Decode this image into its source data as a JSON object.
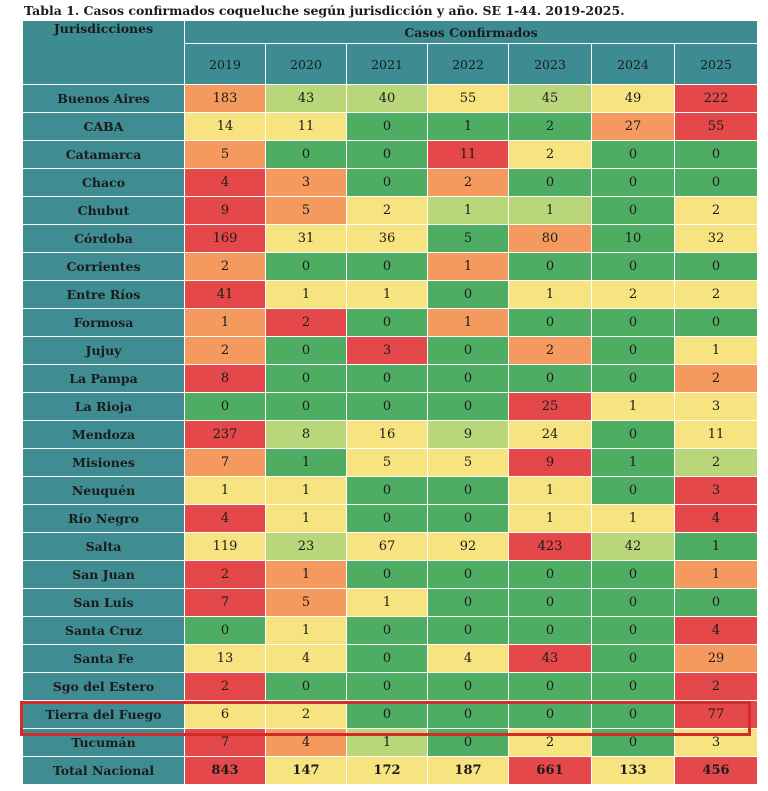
{
  "caption": "Tabla 1. Casos confirmados coqueluche según jurisdicción y año. SE 1-44. 2019-2025.",
  "header": {
    "jurisdictions": "Jurisdicciones",
    "group": "Casos Confirmados",
    "years": [
      "2019",
      "2020",
      "2021",
      "2022",
      "2023",
      "2024",
      "2025"
    ]
  },
  "colors": {
    "header_teal": "#3d8c91",
    "red": "#e5484a",
    "orange": "#f49a5e",
    "yellow": "#f7e37f",
    "light_green": "#b9d77a",
    "green": "#4fad63",
    "highlight_border": "#d42a2a"
  },
  "highlighted_row": "Tierra del Fuego",
  "rows": [
    {
      "name": "Buenos Aires",
      "values": [
        "183",
        "43",
        "40",
        "55",
        "45",
        "49",
        "222"
      ],
      "tones": [
        "orange",
        "light_green",
        "light_green",
        "yellow",
        "light_green",
        "yellow",
        "red"
      ]
    },
    {
      "name": "CABA",
      "values": [
        "14",
        "11",
        "0",
        "1",
        "2",
        "27",
        "55"
      ],
      "tones": [
        "yellow",
        "yellow",
        "green",
        "green",
        "green",
        "orange",
        "red"
      ]
    },
    {
      "name": "Catamarca",
      "values": [
        "5",
        "0",
        "0",
        "11",
        "2",
        "0",
        "0"
      ],
      "tones": [
        "orange",
        "green",
        "green",
        "red",
        "yellow",
        "green",
        "green"
      ]
    },
    {
      "name": "Chaco",
      "values": [
        "4",
        "3",
        "0",
        "2",
        "0",
        "0",
        "0"
      ],
      "tones": [
        "red",
        "orange",
        "green",
        "orange",
        "green",
        "green",
        "green"
      ]
    },
    {
      "name": "Chubut",
      "values": [
        "9",
        "5",
        "2",
        "1",
        "1",
        "0",
        "2"
      ],
      "tones": [
        "red",
        "orange",
        "yellow",
        "light_green",
        "light_green",
        "green",
        "yellow"
      ]
    },
    {
      "name": "Córdoba",
      "values": [
        "169",
        "31",
        "36",
        "5",
        "80",
        "10",
        "32"
      ],
      "tones": [
        "red",
        "yellow",
        "yellow",
        "green",
        "orange",
        "green",
        "yellow"
      ]
    },
    {
      "name": "Corrientes",
      "values": [
        "2",
        "0",
        "0",
        "1",
        "0",
        "0",
        "0"
      ],
      "tones": [
        "orange",
        "green",
        "green",
        "orange",
        "green",
        "green",
        "green"
      ]
    },
    {
      "name": "Entre Ríos",
      "values": [
        "41",
        "1",
        "1",
        "0",
        "1",
        "2",
        "2"
      ],
      "tones": [
        "red",
        "yellow",
        "yellow",
        "green",
        "yellow",
        "yellow",
        "yellow"
      ]
    },
    {
      "name": "Formosa",
      "values": [
        "1",
        "2",
        "0",
        "1",
        "0",
        "0",
        "0"
      ],
      "tones": [
        "orange",
        "red",
        "green",
        "orange",
        "green",
        "green",
        "green"
      ]
    },
    {
      "name": "Jujuy",
      "values": [
        "2",
        "0",
        "3",
        "0",
        "2",
        "0",
        "1"
      ],
      "tones": [
        "orange",
        "green",
        "red",
        "green",
        "orange",
        "green",
        "yellow"
      ]
    },
    {
      "name": "La Pampa",
      "values": [
        "8",
        "0",
        "0",
        "0",
        "0",
        "0",
        "2"
      ],
      "tones": [
        "red",
        "green",
        "green",
        "green",
        "green",
        "green",
        "orange"
      ]
    },
    {
      "name": "La Rioja",
      "values": [
        "0",
        "0",
        "0",
        "0",
        "25",
        "1",
        "3"
      ],
      "tones": [
        "green",
        "green",
        "green",
        "green",
        "red",
        "yellow",
        "yellow"
      ]
    },
    {
      "name": "Mendoza",
      "values": [
        "237",
        "8",
        "16",
        "9",
        "24",
        "0",
        "11"
      ],
      "tones": [
        "red",
        "light_green",
        "yellow",
        "light_green",
        "yellow",
        "green",
        "yellow"
      ]
    },
    {
      "name": "Misiones",
      "values": [
        "7",
        "1",
        "5",
        "5",
        "9",
        "1",
        "2"
      ],
      "tones": [
        "orange",
        "green",
        "yellow",
        "yellow",
        "red",
        "green",
        "light_green"
      ]
    },
    {
      "name": "Neuquén",
      "values": [
        "1",
        "1",
        "0",
        "0",
        "1",
        "0",
        "3"
      ],
      "tones": [
        "yellow",
        "yellow",
        "green",
        "green",
        "yellow",
        "green",
        "red"
      ]
    },
    {
      "name": "Río Negro",
      "values": [
        "4",
        "1",
        "0",
        "0",
        "1",
        "1",
        "4"
      ],
      "tones": [
        "red",
        "yellow",
        "green",
        "green",
        "yellow",
        "yellow",
        "red"
      ]
    },
    {
      "name": "Salta",
      "values": [
        "119",
        "23",
        "67",
        "92",
        "423",
        "42",
        "1"
      ],
      "tones": [
        "yellow",
        "light_green",
        "yellow",
        "yellow",
        "red",
        "light_green",
        "green"
      ]
    },
    {
      "name": "San Juan",
      "values": [
        "2",
        "1",
        "0",
        "0",
        "0",
        "0",
        "1"
      ],
      "tones": [
        "red",
        "orange",
        "green",
        "green",
        "green",
        "green",
        "orange"
      ]
    },
    {
      "name": "San Luis",
      "values": [
        "7",
        "5",
        "1",
        "0",
        "0",
        "0",
        "0"
      ],
      "tones": [
        "red",
        "orange",
        "yellow",
        "green",
        "green",
        "green",
        "green"
      ]
    },
    {
      "name": "Santa Cruz",
      "values": [
        "0",
        "1",
        "0",
        "0",
        "0",
        "0",
        "4"
      ],
      "tones": [
        "green",
        "yellow",
        "green",
        "green",
        "green",
        "green",
        "red"
      ]
    },
    {
      "name": "Santa Fe",
      "values": [
        "13",
        "4",
        "0",
        "4",
        "43",
        "0",
        "29"
      ],
      "tones": [
        "yellow",
        "yellow",
        "green",
        "yellow",
        "red",
        "green",
        "orange"
      ]
    },
    {
      "name": "Sgo del Estero",
      "values": [
        "2",
        "0",
        "0",
        "0",
        "0",
        "0",
        "2"
      ],
      "tones": [
        "red",
        "green",
        "green",
        "green",
        "green",
        "green",
        "red"
      ]
    },
    {
      "name": "Tierra del Fuego",
      "values": [
        "6",
        "2",
        "0",
        "0",
        "0",
        "0",
        "77"
      ],
      "tones": [
        "yellow",
        "yellow",
        "green",
        "green",
        "green",
        "green",
        "red"
      ]
    },
    {
      "name": "Tucumán",
      "values": [
        "7",
        "4",
        "1",
        "0",
        "2",
        "0",
        "3"
      ],
      "tones": [
        "red",
        "orange",
        "light_green",
        "green",
        "yellow",
        "green",
        "yellow"
      ]
    }
  ],
  "total": {
    "name": "Total Nacional",
    "values": [
      "843",
      "147",
      "172",
      "187",
      "661",
      "133",
      "456"
    ],
    "tones": [
      "red",
      "yellow",
      "yellow",
      "yellow",
      "red",
      "yellow",
      "red"
    ]
  }
}
